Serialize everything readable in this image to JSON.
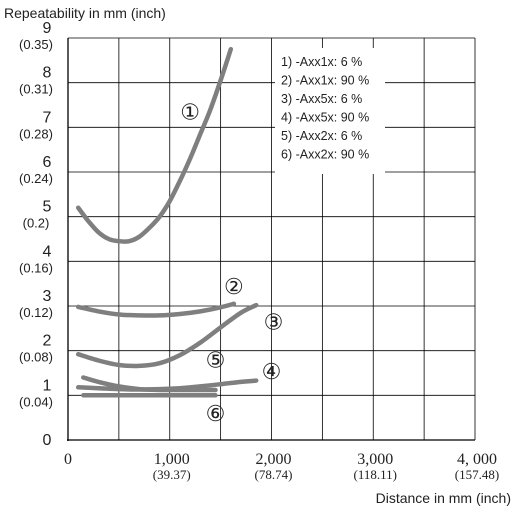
{
  "chart_data": {
    "type": "line",
    "ylabel": "Repeatability in mm (inch)",
    "xlabel": "Distance in mm (inch)",
    "xlim": [
      0,
      4000
    ],
    "ylim": [
      0,
      9
    ],
    "grid": true,
    "x_ticks": [
      {
        "value": 0,
        "label": "0",
        "sublabel": ""
      },
      {
        "value": 1000,
        "label": "1,000",
        "sublabel": "(39.37)"
      },
      {
        "value": 2000,
        "label": "2,000",
        "sublabel": "(78.74)"
      },
      {
        "value": 3000,
        "label": "3,000",
        "sublabel": "(118.11)"
      },
      {
        "value": 4000,
        "label": "4, 000",
        "sublabel": "(157.48)"
      }
    ],
    "y_ticks": [
      {
        "value": 0,
        "label": "0",
        "sublabel": ""
      },
      {
        "value": 1,
        "label": "1",
        "sublabel": "(0.04)"
      },
      {
        "value": 2,
        "label": "2",
        "sublabel": "(0.08)"
      },
      {
        "value": 3,
        "label": "3",
        "sublabel": "(0.12)"
      },
      {
        "value": 4,
        "label": "4",
        "sublabel": "(0.16)"
      },
      {
        "value": 5,
        "label": "5",
        "sublabel": "(0.2)"
      },
      {
        "value": 6,
        "label": "6",
        "sublabel": "(0.24)"
      },
      {
        "value": 7,
        "label": "7",
        "sublabel": "(0.28)"
      },
      {
        "value": 8,
        "label": "8",
        "sublabel": "(0.31)"
      },
      {
        "value": 9,
        "label": "9",
        "sublabel": "(0.35)"
      }
    ],
    "legend": {
      "placement": "top-right",
      "entries": [
        "1) -Axx1x: 6 %",
        "2) -Axx1x: 90 %",
        "3) -Axx5x: 6 %",
        "4) -Axx5x: 90 %",
        "5) -Axx2x: 6 %",
        "6) -Axx2x: 90 %"
      ]
    },
    "line_color": "#7f7f7f",
    "series": [
      {
        "name": "①",
        "label_at": [
          1200,
          7.3
        ],
        "x": [
          100,
          200,
          300,
          400,
          500,
          600,
          700,
          800,
          900,
          1000,
          1100,
          1200,
          1300,
          1400,
          1500,
          1600
        ],
        "y": [
          5.2,
          4.9,
          4.65,
          4.5,
          4.45,
          4.45,
          4.55,
          4.75,
          5.0,
          5.35,
          5.8,
          6.3,
          6.85,
          7.4,
          8.05,
          8.75
        ]
      },
      {
        "name": "②",
        "label_at": [
          1630,
          3.4
        ],
        "x": [
          100,
          300,
          500,
          700,
          900,
          1100,
          1300,
          1500,
          1630
        ],
        "y": [
          2.98,
          2.88,
          2.81,
          2.79,
          2.79,
          2.82,
          2.88,
          2.97,
          3.05
        ]
      },
      {
        "name": "③",
        "label_at": [
          2020,
          2.6
        ],
        "x": [
          100,
          300,
          500,
          700,
          900,
          1100,
          1300,
          1500,
          1700,
          1850
        ],
        "y": [
          1.92,
          1.78,
          1.68,
          1.66,
          1.72,
          1.9,
          2.18,
          2.52,
          2.85,
          3.02
        ]
      },
      {
        "name": "④",
        "label_at": [
          2000,
          1.5
        ],
        "x": [
          100,
          300,
          500,
          700,
          900,
          1100,
          1300,
          1500,
          1700,
          1850
        ],
        "y": [
          1.18,
          1.16,
          1.14,
          1.13,
          1.14,
          1.16,
          1.2,
          1.25,
          1.3,
          1.33
        ]
      },
      {
        "name": "⑤",
        "label_at": [
          1450,
          1.75
        ],
        "x": [
          150,
          300,
          500,
          700,
          900,
          1100,
          1300,
          1450
        ],
        "y": [
          1.4,
          1.3,
          1.2,
          1.14,
          1.12,
          1.12,
          1.12,
          1.12
        ]
      },
      {
        "name": "⑥",
        "label_at": [
          1450,
          0.55
        ],
        "x": [
          150,
          400,
          700,
          1000,
          1300,
          1450
        ],
        "y": [
          1.0,
          1.0,
          1.0,
          1.0,
          1.0,
          1.0
        ]
      }
    ]
  }
}
